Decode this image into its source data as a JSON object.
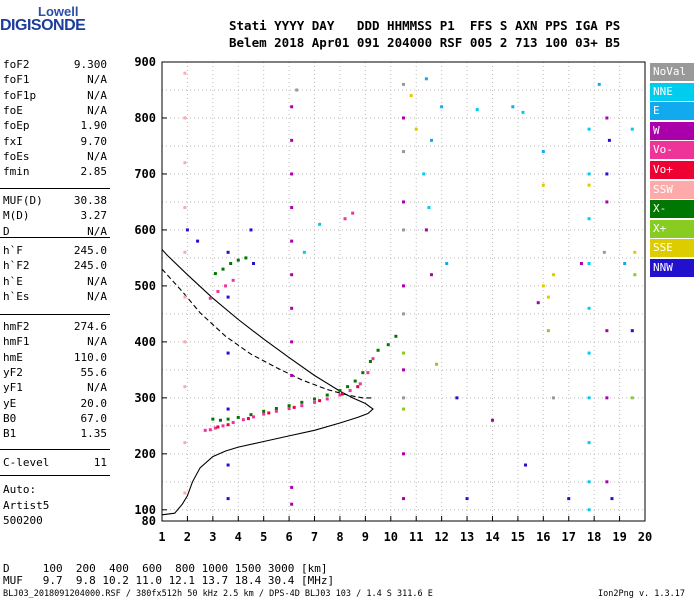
{
  "logo": {
    "top": "Lowell",
    "bottom": "DIGISONDE"
  },
  "header": {
    "line1": "Stati YYYY DAY   DDD HHMMSS P1  FFS S AXN PPS IGA PS",
    "line2": "Belem 2018 Apr01 091 204000 RSF 005 2 713 100 03+ B5"
  },
  "params_group1": [
    {
      "label": "foF2",
      "value": "9.300"
    },
    {
      "label": "foF1",
      "value": "N/A"
    },
    {
      "label": "foF1p",
      "value": "N/A"
    },
    {
      "label": "foE",
      "value": "N/A"
    },
    {
      "label": "foEp",
      "value": "1.90"
    },
    {
      "label": "fxI",
      "value": "9.70"
    },
    {
      "label": "foEs",
      "value": "N/A"
    },
    {
      "label": "fmin",
      "value": "2.85"
    }
  ],
  "params_group2": [
    {
      "label": "MUF(D)",
      "value": "30.38"
    },
    {
      "label": "M(D)",
      "value": "3.27"
    },
    {
      "label": "D",
      "value": "N/A"
    }
  ],
  "params_group3": [
    {
      "label": "h`F",
      "value": "245.0"
    },
    {
      "label": "h`F2",
      "value": "245.0"
    },
    {
      "label": "h`E",
      "value": "N/A"
    },
    {
      "label": "h`Es",
      "value": "N/A"
    }
  ],
  "params_group4": [
    {
      "label": "hmF2",
      "value": "274.6"
    },
    {
      "label": "hmF1",
      "value": "N/A"
    },
    {
      "label": "hmE",
      "value": "110.0"
    },
    {
      "label": "yF2",
      "value": "55.6"
    },
    {
      "label": "yF1",
      "value": "N/A"
    },
    {
      "label": "yE",
      "value": "20.0"
    },
    {
      "label": "B0",
      "value": "67.0"
    },
    {
      "label": "B1",
      "value": "1.35"
    }
  ],
  "params_group5": [
    {
      "label": "C-level",
      "value": "11"
    }
  ],
  "autoscale": {
    "line1": "Auto:",
    "line2": "Artist5",
    "line3": "500200"
  },
  "legend": [
    {
      "label": "NoVal",
      "color": "#999999"
    },
    {
      "label": "NNE",
      "color": "#00ccee"
    },
    {
      "label": "E",
      "color": "#11aaee"
    },
    {
      "label": "W",
      "color": "#aa00aa"
    },
    {
      "label": "Vo-",
      "color": "#ee3399"
    },
    {
      "label": "Vo+",
      "color": "#ee0033"
    },
    {
      "label": "SSW",
      "color": "#ffaaaa"
    },
    {
      "label": "X-",
      "color": "#007700"
    },
    {
      "label": "X+",
      "color": "#88cc22"
    },
    {
      "label": "SSE",
      "color": "#ddcc00"
    },
    {
      "label": "NNW",
      "color": "#2211cc"
    }
  ],
  "footer": {
    "d_line": "D     100  200  400  600  800 1000 1500 3000 [km]",
    "muf_line": "MUF   9.7  9.8 10.2 11.0 12.1 13.7 18.4 30.4 [MHz]",
    "file_line": "BLJ03_2018091204000.RSF / 380fx512h 50 kHz 2.5 km / DPS-4D BLJ03 103 / 1.4 S 311.6 E",
    "version": "Ion2Png v. 1.3.17"
  },
  "chart_data": {
    "type": "scatter",
    "title": "",
    "xlabel": "",
    "ylabel": "",
    "xlim": [
      1,
      20
    ],
    "ylim": [
      80,
      900
    ],
    "x_ticks": [
      1,
      2,
      3,
      4,
      5,
      6,
      7,
      8,
      9,
      10,
      11,
      12,
      13,
      14,
      15,
      16,
      17,
      18,
      19,
      20
    ],
    "y_ticks": [
      100,
      200,
      300,
      400,
      500,
      600,
      700,
      800,
      900
    ],
    "y_ticks_extra": [
      80
    ],
    "grid": true,
    "series": [
      {
        "name": "X-",
        "color": "#007700",
        "points": [
          [
            3.0,
            262
          ],
          [
            3.3,
            260
          ],
          [
            3.6,
            262
          ],
          [
            4.0,
            265
          ],
          [
            4.5,
            270
          ],
          [
            5.0,
            276
          ],
          [
            5.5,
            281
          ],
          [
            6.0,
            286
          ],
          [
            6.5,
            292
          ],
          [
            7.0,
            298
          ],
          [
            7.5,
            305
          ],
          [
            8.0,
            313
          ],
          [
            8.3,
            320
          ],
          [
            8.6,
            330
          ],
          [
            8.9,
            345
          ],
          [
            9.2,
            365
          ],
          [
            9.5,
            385
          ],
          [
            3.1,
            522
          ],
          [
            3.4,
            530
          ],
          [
            3.7,
            540
          ],
          [
            4.0,
            546
          ],
          [
            4.3,
            550
          ],
          [
            9.9,
            395
          ],
          [
            10.2,
            410
          ]
        ]
      },
      {
        "name": "Vo-",
        "color": "#ee3399",
        "points": [
          [
            2.7,
            242
          ],
          [
            2.9,
            243
          ],
          [
            3.1,
            246
          ],
          [
            3.4,
            250
          ],
          [
            3.8,
            256
          ],
          [
            4.2,
            261
          ],
          [
            4.6,
            266
          ],
          [
            5.0,
            271
          ],
          [
            5.5,
            276
          ],
          [
            6.0,
            281
          ],
          [
            6.5,
            286
          ],
          [
            7.0,
            292
          ],
          [
            7.5,
            298
          ],
          [
            8.0,
            305
          ],
          [
            8.4,
            313
          ],
          [
            8.8,
            325
          ],
          [
            9.1,
            345
          ],
          [
            9.3,
            370
          ],
          [
            2.9,
            478
          ],
          [
            3.2,
            490
          ],
          [
            3.5,
            500
          ],
          [
            3.8,
            510
          ],
          [
            8.2,
            620
          ],
          [
            8.5,
            630
          ]
        ]
      },
      {
        "name": "Vo+",
        "color": "#ee0033",
        "points": [
          [
            3.2,
            248
          ],
          [
            3.6,
            252
          ],
          [
            4.4,
            263
          ],
          [
            5.2,
            273
          ],
          [
            6.2,
            283
          ],
          [
            7.2,
            295
          ],
          [
            8.1,
            307
          ],
          [
            8.7,
            320
          ]
        ]
      },
      {
        "name": "W",
        "color": "#aa00aa",
        "points": [
          [
            6.1,
            820
          ],
          [
            6.1,
            760
          ],
          [
            6.1,
            700
          ],
          [
            6.1,
            640
          ],
          [
            6.1,
            580
          ],
          [
            6.1,
            520
          ],
          [
            6.1,
            460
          ],
          [
            6.1,
            400
          ],
          [
            6.1,
            340
          ],
          [
            6.1,
            140
          ],
          [
            6.1,
            110
          ],
          [
            10.5,
            800
          ],
          [
            10.5,
            650
          ],
          [
            10.5,
            500
          ],
          [
            10.5,
            350
          ],
          [
            10.5,
            200
          ],
          [
            10.5,
            120
          ],
          [
            18.5,
            800
          ],
          [
            18.5,
            650
          ],
          [
            18.5,
            420
          ],
          [
            18.5,
            300
          ],
          [
            18.5,
            150
          ],
          [
            11.4,
            600
          ],
          [
            11.6,
            520
          ],
          [
            14.0,
            260
          ],
          [
            15.8,
            470
          ],
          [
            17.5,
            540
          ]
        ]
      },
      {
        "name": "NNE",
        "color": "#00ccee",
        "points": [
          [
            17.8,
            780
          ],
          [
            17.8,
            700
          ],
          [
            17.8,
            620
          ],
          [
            17.8,
            540
          ],
          [
            17.8,
            460
          ],
          [
            17.8,
            380
          ],
          [
            17.8,
            300
          ],
          [
            17.8,
            220
          ],
          [
            17.8,
            150
          ],
          [
            17.8,
            100
          ],
          [
            19.5,
            780
          ],
          [
            11.3,
            700
          ],
          [
            11.5,
            640
          ],
          [
            13.4,
            815
          ],
          [
            15.2,
            810
          ],
          [
            6.6,
            560
          ],
          [
            7.2,
            610
          ]
        ]
      },
      {
        "name": "E",
        "color": "#11aaee",
        "points": [
          [
            11.4,
            870
          ],
          [
            11.6,
            760
          ],
          [
            12.0,
            820
          ],
          [
            12.2,
            540
          ],
          [
            14.8,
            820
          ],
          [
            16.0,
            740
          ],
          [
            18.2,
            860
          ],
          [
            19.2,
            540
          ]
        ]
      },
      {
        "name": "SSW",
        "color": "#ffaaaa",
        "points": [
          [
            1.9,
            880
          ],
          [
            1.9,
            800
          ],
          [
            1.9,
            720
          ],
          [
            1.9,
            640
          ],
          [
            1.9,
            560
          ],
          [
            1.9,
            480
          ],
          [
            1.9,
            400
          ],
          [
            1.9,
            320
          ],
          [
            1.9,
            220
          ],
          [
            1.9,
            130
          ]
        ]
      },
      {
        "name": "X+",
        "color": "#88cc22",
        "points": [
          [
            10.5,
            380
          ],
          [
            10.5,
            280
          ],
          [
            11.8,
            360
          ],
          [
            16.2,
            420
          ],
          [
            19.5,
            300
          ],
          [
            19.6,
            520
          ]
        ]
      },
      {
        "name": "SSE",
        "color": "#ddcc00",
        "points": [
          [
            10.8,
            840
          ],
          [
            11.0,
            780
          ],
          [
            16.0,
            680
          ],
          [
            16.0,
            500
          ],
          [
            16.2,
            480
          ],
          [
            16.4,
            520
          ],
          [
            19.6,
            560
          ],
          [
            17.8,
            680
          ]
        ]
      },
      {
        "name": "NNW",
        "color": "#2211cc",
        "points": [
          [
            3.6,
            560
          ],
          [
            3.6,
            480
          ],
          [
            3.6,
            380
          ],
          [
            3.6,
            280
          ],
          [
            3.6,
            180
          ],
          [
            3.6,
            120
          ],
          [
            2.0,
            600
          ],
          [
            2.4,
            580
          ],
          [
            4.5,
            600
          ],
          [
            4.6,
            540
          ],
          [
            18.5,
            700
          ],
          [
            18.6,
            760
          ],
          [
            15.3,
            180
          ],
          [
            12.6,
            300
          ],
          [
            13.0,
            120
          ],
          [
            17.0,
            120
          ],
          [
            18.7,
            120
          ],
          [
            19.5,
            420
          ]
        ]
      },
      {
        "name": "NoVal",
        "color": "#999999",
        "points": [
          [
            10.5,
            860
          ],
          [
            10.5,
            740
          ],
          [
            10.5,
            600
          ],
          [
            10.5,
            450
          ],
          [
            10.5,
            300
          ],
          [
            6.3,
            850
          ],
          [
            18.4,
            560
          ],
          [
            16.4,
            300
          ]
        ]
      }
    ],
    "curves": [
      {
        "style": "solid",
        "color": "#000000",
        "points": [
          [
            1.0,
            91
          ],
          [
            1.5,
            94
          ],
          [
            1.8,
            110
          ],
          [
            2.0,
            125
          ],
          [
            2.2,
            150
          ],
          [
            2.5,
            175
          ],
          [
            3.0,
            195
          ],
          [
            3.5,
            205
          ],
          [
            4.0,
            212
          ],
          [
            5.0,
            222
          ],
          [
            6.0,
            232
          ],
          [
            7.0,
            242
          ],
          [
            8.0,
            255
          ],
          [
            8.7,
            265
          ],
          [
            9.1,
            272
          ],
          [
            9.3,
            280
          ],
          [
            9.0,
            290
          ],
          [
            8.5,
            300
          ],
          [
            8.0,
            312
          ],
          [
            7.0,
            340
          ],
          [
            6.0,
            372
          ],
          [
            5.0,
            405
          ],
          [
            4.0,
            440
          ],
          [
            3.0,
            478
          ],
          [
            2.0,
            520
          ],
          [
            1.2,
            555
          ],
          [
            1.0,
            565
          ]
        ]
      },
      {
        "style": "dashed",
        "color": "#000000",
        "points": [
          [
            1.0,
            530
          ],
          [
            1.8,
            490
          ],
          [
            2.5,
            452
          ],
          [
            3.5,
            410
          ],
          [
            4.5,
            378
          ],
          [
            5.5,
            354
          ],
          [
            6.5,
            332
          ],
          [
            7.5,
            315
          ],
          [
            8.3,
            305
          ],
          [
            8.9,
            300
          ],
          [
            9.2,
            300
          ],
          [
            9.3,
            300
          ]
        ]
      }
    ]
  }
}
